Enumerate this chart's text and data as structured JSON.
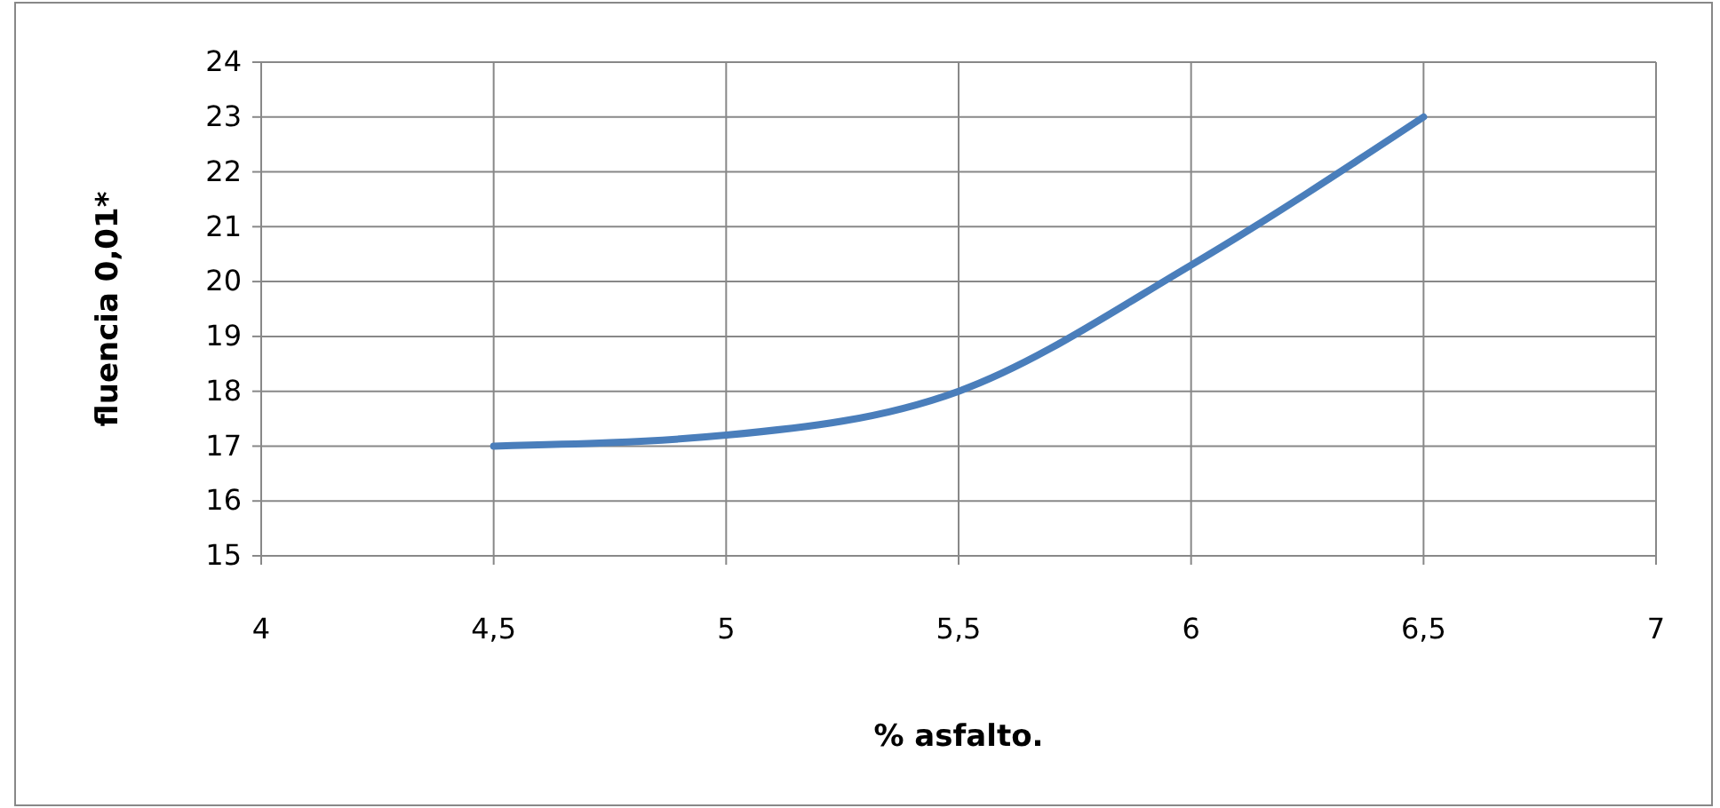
{
  "chart_data": {
    "type": "line",
    "xlabel": "% asfalto.",
    "ylabel": "fluencia 0,01*",
    "x": [
      4.5,
      5,
      5.5,
      6,
      6.5
    ],
    "series": [
      {
        "color": "#4a7ebb",
        "values": [
          17,
          17.2,
          18,
          20.3,
          23
        ]
      }
    ],
    "xlim": [
      4,
      7
    ],
    "xticks": [
      4,
      {
        "value": 4.5,
        "label": "4,5"
      },
      5,
      {
        "value": 5.5,
        "label": "5,5"
      },
      6,
      {
        "value": 6.5,
        "label": "6,5"
      },
      7
    ],
    "ylim": [
      15,
      24
    ],
    "yticks": [
      15,
      16,
      17,
      18,
      19,
      20,
      21,
      22,
      23,
      24
    ],
    "grid": true,
    "marker": "none",
    "line_style": "solid"
  }
}
